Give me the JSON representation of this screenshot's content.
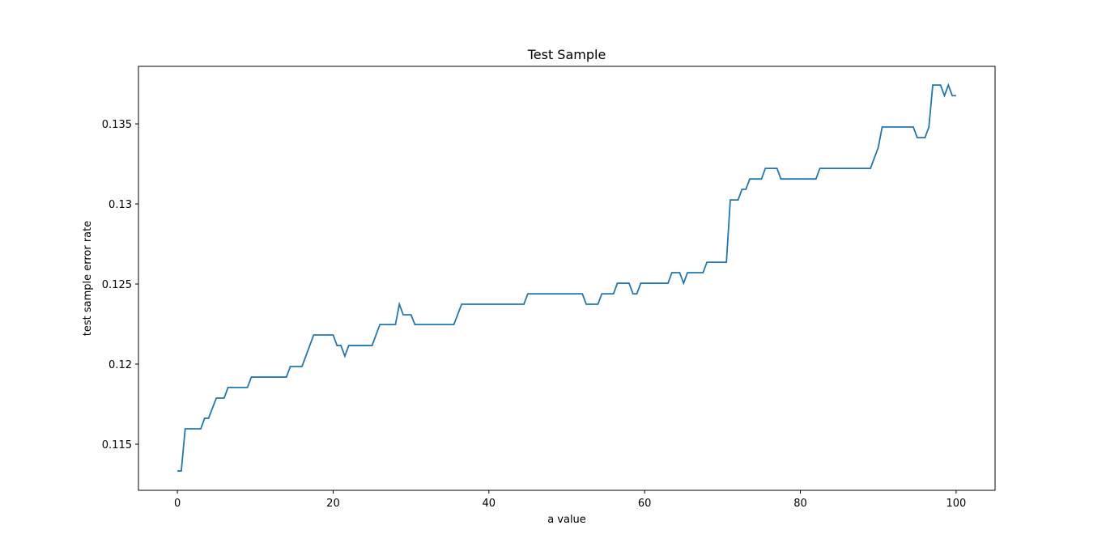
{
  "chart_data": {
    "type": "line",
    "title": "Test Sample",
    "x_label": "a value",
    "y_label": "test sample error rate",
    "x": [
      0,
      0.5,
      1,
      3,
      3.5,
      4,
      5,
      6,
      6.5,
      9,
      9.5,
      14,
      14.5,
      16,
      17.5,
      20,
      20.5,
      21,
      21.5,
      22,
      25,
      26,
      28,
      28.5,
      29,
      30,
      30.5,
      35.5,
      36.5,
      44.5,
      45,
      52,
      52.5,
      54,
      54.5,
      56,
      56.5,
      58,
      58.5,
      59,
      59.5,
      63,
      63.5,
      64.5,
      65,
      65.5,
      67.5,
      68,
      70.5,
      71,
      72,
      72.5,
      73,
      73.5,
      75,
      75.5,
      77,
      77.5,
      82,
      82.5,
      89,
      90,
      90.5,
      94.5,
      95,
      96,
      96.5,
      97,
      98,
      98.5,
      99,
      99.5,
      100
    ],
    "series": [
      {
        "color": "#1f77b4",
        "values": [
          0.11333,
          0.11333,
          0.11596,
          0.11596,
          0.11662,
          0.11662,
          0.11788,
          0.11788,
          0.11854,
          0.11854,
          0.11919,
          0.11919,
          0.11985,
          0.11985,
          0.12182,
          0.12182,
          0.12116,
          0.12116,
          0.1205,
          0.12116,
          0.12116,
          0.12247,
          0.12247,
          0.12374,
          0.12308,
          0.12308,
          0.12247,
          0.12247,
          0.12374,
          0.12374,
          0.12439,
          0.12439,
          0.12374,
          0.12374,
          0.12439,
          0.12439,
          0.12505,
          0.12505,
          0.12439,
          0.12439,
          0.12505,
          0.12505,
          0.12571,
          0.12571,
          0.12505,
          0.12571,
          0.12571,
          0.12636,
          0.12636,
          0.13025,
          0.13025,
          0.13091,
          0.13091,
          0.13156,
          0.13156,
          0.13222,
          0.13222,
          0.13156,
          0.13156,
          0.13222,
          0.13222,
          0.13353,
          0.1348,
          0.1348,
          0.13414,
          0.13414,
          0.1348,
          0.13742,
          0.13742,
          0.13676,
          0.13742,
          0.13676,
          0.13676
        ]
      }
    ],
    "xlim": [
      -5,
      105
    ],
    "ylim": [
      0.11212,
      0.13859
    ],
    "xticks": [
      0,
      20,
      40,
      60,
      80,
      100
    ],
    "yticks": [
      0.115,
      0.12,
      0.125,
      0.13,
      0.135
    ],
    "grid": false
  }
}
